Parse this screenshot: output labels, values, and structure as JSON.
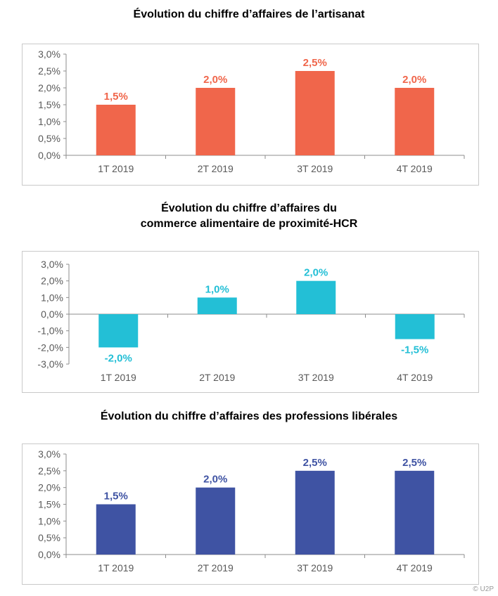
{
  "chart_data": [
    {
      "type": "bar",
      "title": "Évolution du chiffre d’affaires de l’artisanat",
      "categories": [
        "1T 2019",
        "2T 2019",
        "3T 2019",
        "4T 2019"
      ],
      "values": [
        1.5,
        2.0,
        2.5,
        2.0
      ],
      "value_labels": [
        "1,5%",
        "2,0%",
        "2,5%",
        "2,0%"
      ],
      "yticks": [
        "3,0%",
        "2,5%",
        "2,0%",
        "1,5%",
        "1,0%",
        "0,5%",
        "0,0%"
      ],
      "ylim": [
        0,
        3
      ],
      "color": "#f0664b",
      "grid": false
    },
    {
      "type": "bar",
      "title_lines": [
        "Évolution du chiffre d’affaires du",
        "commerce alimentaire de proximité-HCR"
      ],
      "categories": [
        "1T 2019",
        "2T 2019",
        "3T 2019",
        "4T 2019"
      ],
      "values": [
        -2.0,
        1.0,
        2.0,
        -1.5
      ],
      "value_labels": [
        "-2,0%",
        "1,0%",
        "2,0%",
        "-1,5%"
      ],
      "yticks": [
        "3,0%",
        "2,0%",
        "1,0%",
        "0,0%",
        "-1,0%",
        "-2,0%",
        "-3,0%"
      ],
      "ylim": [
        -3,
        3
      ],
      "color": "#23bfd6",
      "grid": false
    },
    {
      "type": "bar",
      "title": "Évolution du chiffre d’affaires des professions libérales",
      "categories": [
        "1T 2019",
        "2T 2019",
        "3T 2019",
        "4T 2019"
      ],
      "values": [
        1.5,
        2.0,
        2.5,
        2.5
      ],
      "value_labels": [
        "1,5%",
        "2,0%",
        "2,5%",
        "2,5%"
      ],
      "yticks": [
        "3,0%",
        "2,5%",
        "2,0%",
        "1,5%",
        "1,0%",
        "0,5%",
        "0,0%"
      ],
      "ylim": [
        0,
        3
      ],
      "color": "#3f53a3",
      "grid": false
    }
  ],
  "copyright": "© U2P"
}
